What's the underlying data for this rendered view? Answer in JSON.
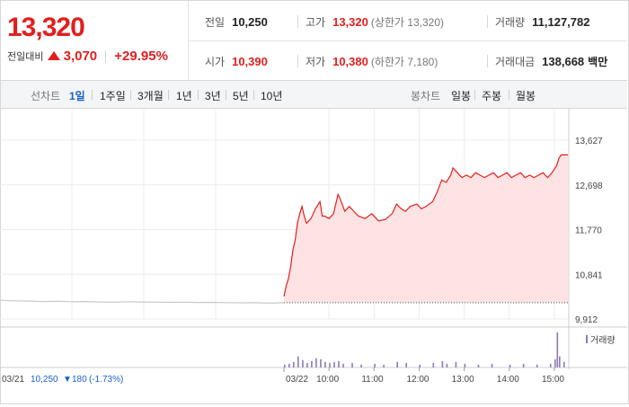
{
  "quote": {
    "price": "13,320",
    "change_label": "전일대비",
    "change_value": "3,070",
    "change_pct": "+29.95%",
    "stats": {
      "prev_close": {
        "label": "전일",
        "value": "10,250"
      },
      "high": {
        "label": "고가",
        "value": "13,320",
        "sub": "(상한가 13,320)"
      },
      "volume": {
        "label": "거래량",
        "value": "11,127,782"
      },
      "open": {
        "label": "시가",
        "value": "10,390"
      },
      "low": {
        "label": "저가",
        "value": "10,380",
        "sub": "(하한가 7,180)"
      },
      "turnover": {
        "label": "거래대금",
        "value": "138,668",
        "unit": "백만"
      }
    },
    "colors": {
      "up": "#e21f1f",
      "down": "#1a5fc7",
      "accent": "#1a5fc7"
    }
  },
  "toolbar": {
    "line_chart_label": "선차트",
    "periods": [
      "1일",
      "1주일",
      "3개월",
      "1년",
      "3년",
      "5년",
      "10년"
    ],
    "active_period": "1일",
    "candle_label": "봉차트",
    "candles": [
      "일봉",
      "주봉",
      "월봉"
    ]
  },
  "chart_data": {
    "type": "line",
    "y_ticks": [
      "13,627",
      "12,698",
      "11,770",
      "10,841",
      "9,912"
    ],
    "ylim": [
      9912,
      13627
    ],
    "prev_close": 10250,
    "prev_day": {
      "date_label": "03/21",
      "close_label": "10,250",
      "change_label": "180",
      "change_pct_label": "(-1.73%)",
      "points": [
        [
          0,
          10300
        ],
        [
          0.05,
          10290
        ],
        [
          0.1,
          10285
        ],
        [
          0.15,
          10275
        ],
        [
          0.2,
          10280
        ],
        [
          0.25,
          10270
        ],
        [
          0.3,
          10275
        ],
        [
          0.35,
          10265
        ],
        [
          0.4,
          10260
        ],
        [
          0.45,
          10270
        ],
        [
          0.5,
          10265
        ],
        [
          0.55,
          10262
        ],
        [
          0.6,
          10258
        ],
        [
          0.65,
          10260
        ],
        [
          0.7,
          10255
        ],
        [
          0.75,
          10258
        ],
        [
          0.8,
          10252
        ],
        [
          0.85,
          10248
        ],
        [
          0.9,
          10250
        ],
        [
          0.95,
          10240
        ],
        [
          1,
          10250
        ]
      ]
    },
    "today": {
      "date_label": "03/22",
      "x_ticks": [
        "10:00",
        "11:00",
        "12:00",
        "13:00",
        "14:00",
        "15:00"
      ],
      "points": [
        [
          9.0,
          10380
        ],
        [
          9.05,
          10600
        ],
        [
          9.1,
          10750
        ],
        [
          9.15,
          11000
        ],
        [
          9.2,
          11350
        ],
        [
          9.25,
          11550
        ],
        [
          9.3,
          11900
        ],
        [
          9.35,
          12100
        ],
        [
          9.4,
          12250
        ],
        [
          9.45,
          12050
        ],
        [
          9.5,
          11900
        ],
        [
          9.55,
          11950
        ],
        [
          9.6,
          12000
        ],
        [
          9.7,
          12200
        ],
        [
          9.8,
          12350
        ],
        [
          9.85,
          12050
        ],
        [
          9.9,
          12050
        ],
        [
          10.0,
          12000
        ],
        [
          10.1,
          12100
        ],
        [
          10.2,
          12500
        ],
        [
          10.25,
          12400
        ],
        [
          10.35,
          12150
        ],
        [
          10.45,
          12250
        ],
        [
          10.55,
          12150
        ],
        [
          10.65,
          12050
        ],
        [
          10.8,
          12000
        ],
        [
          10.95,
          12100
        ],
        [
          11.1,
          11950
        ],
        [
          11.25,
          11980
        ],
        [
          11.4,
          12100
        ],
        [
          11.5,
          12300
        ],
        [
          11.6,
          12200
        ],
        [
          11.7,
          12150
        ],
        [
          11.8,
          12250
        ],
        [
          11.95,
          12300
        ],
        [
          12.05,
          12200
        ],
        [
          12.15,
          12250
        ],
        [
          12.3,
          12350
        ],
        [
          12.4,
          12550
        ],
        [
          12.5,
          12800
        ],
        [
          12.6,
          12750
        ],
        [
          12.7,
          12900
        ],
        [
          12.75,
          13050
        ],
        [
          12.85,
          12950
        ],
        [
          12.95,
          12850
        ],
        [
          13.05,
          12900
        ],
        [
          13.15,
          12850
        ],
        [
          13.25,
          12950
        ],
        [
          13.35,
          12900
        ],
        [
          13.45,
          12850
        ],
        [
          13.55,
          12900
        ],
        [
          13.65,
          12950
        ],
        [
          13.75,
          12850
        ],
        [
          13.85,
          12900
        ],
        [
          13.95,
          12950
        ],
        [
          14.05,
          12850
        ],
        [
          14.15,
          12900
        ],
        [
          14.25,
          12950
        ],
        [
          14.35,
          12850
        ],
        [
          14.45,
          12900
        ],
        [
          14.55,
          12850
        ],
        [
          14.65,
          12900
        ],
        [
          14.75,
          12950
        ],
        [
          14.85,
          12850
        ],
        [
          14.95,
          12950
        ],
        [
          15.05,
          13100
        ],
        [
          15.1,
          13250
        ],
        [
          15.15,
          13320
        ],
        [
          15.3,
          13320
        ]
      ]
    },
    "volume_label": "거래량",
    "volume_series": [
      [
        9.0,
        3
      ],
      [
        9.1,
        4
      ],
      [
        9.2,
        6
      ],
      [
        9.3,
        12
      ],
      [
        9.4,
        8
      ],
      [
        9.5,
        5
      ],
      [
        9.6,
        7
      ],
      [
        9.7,
        10
      ],
      [
        9.8,
        9
      ],
      [
        9.9,
        6
      ],
      [
        10.0,
        5
      ],
      [
        10.1,
        6
      ],
      [
        10.2,
        7
      ],
      [
        10.3,
        4
      ],
      [
        10.5,
        5
      ],
      [
        10.7,
        3
      ],
      [
        11.0,
        4
      ],
      [
        11.2,
        3
      ],
      [
        11.5,
        6
      ],
      [
        11.7,
        5
      ],
      [
        12.0,
        3
      ],
      [
        12.3,
        5
      ],
      [
        12.5,
        7
      ],
      [
        12.6,
        4
      ],
      [
        12.8,
        6
      ],
      [
        13.0,
        4
      ],
      [
        13.3,
        3
      ],
      [
        13.6,
        4
      ],
      [
        14.0,
        3
      ],
      [
        14.3,
        4
      ],
      [
        14.6,
        3
      ],
      [
        14.9,
        4
      ],
      [
        15.0,
        9
      ],
      [
        15.05,
        38
      ],
      [
        15.1,
        12
      ],
      [
        15.2,
        6
      ]
    ]
  }
}
